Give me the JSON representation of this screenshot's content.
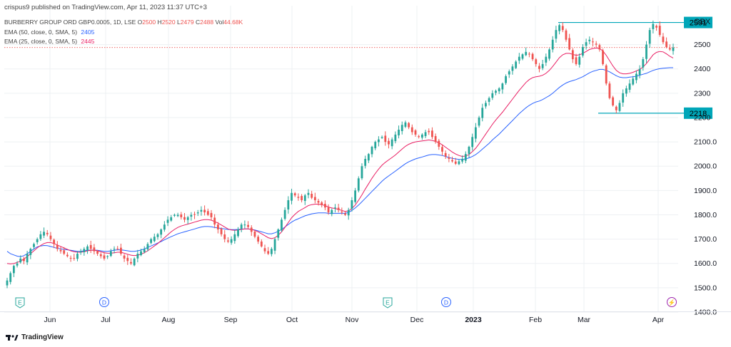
{
  "header": {
    "published": "crispus9 published on TradingView.com, Apr 11, 2023 11:37 UTC+3",
    "symbol": "BURBERRY GROUP ORD GBP0.0005, 1D, LSE",
    "ohlc": {
      "o_label": "O",
      "o": "2500",
      "h_label": "H",
      "h": "2520",
      "l_label": "L",
      "l": "2479",
      "c_label": "C",
      "c": "2488",
      "vol_label": "Vol",
      "vol": "44.68K"
    },
    "ema50_label": "EMA (50, close, 0, SMA, 5)",
    "ema50_value": "2405",
    "ema25_label": "EMA (25, close, 0, SMA, 5)",
    "ema25_value": "2445"
  },
  "footer": {
    "brand": "TradingView"
  },
  "colors": {
    "up": "#26a69a",
    "down": "#ef5350",
    "ema50": "#2962ff",
    "ema25": "#e91e63",
    "level": "#00a6b8",
    "grid": "#eef0f3",
    "price_line": "#ef5350"
  },
  "chart_data": {
    "type": "candlestick",
    "currency": "GBX",
    "ylim": [
      1400,
      2660
    ],
    "y_ticks": [
      "1400.0",
      "1500.0",
      "1600.0",
      "1700.0",
      "1800.0",
      "1900.0",
      "2000.0",
      "2100.0",
      "2200",
      "2300",
      "2400",
      "2500"
    ],
    "x_ticks": [
      "Jun",
      "Jul",
      "Aug",
      "Sep",
      "Oct",
      "Nov",
      "Dec",
      "2023",
      "Feb",
      "Mar",
      "Apr"
    ],
    "levels": [
      {
        "label": "2591",
        "value": 2591,
        "x_start": 2022.0
      },
      {
        "label": "2218",
        "value": 2218,
        "x_start": 2022.0
      }
    ],
    "current_price": 2488,
    "event_markers": [
      {
        "label": "E",
        "x_tick": "May",
        "kind": "earnings"
      },
      {
        "label": "D",
        "x_tick": "Jul",
        "kind": "dividend"
      },
      {
        "label": "E",
        "x_tick": "Nov",
        "kind": "earnings"
      },
      {
        "label": "D",
        "x_tick": "Dec",
        "kind": "dividend"
      },
      {
        "label": "⚡",
        "x_tick": "Apr",
        "kind": "split"
      }
    ],
    "close_path": [
      1530,
      1560,
      1590,
      1600,
      1620,
      1610,
      1640,
      1660,
      1680,
      1700,
      1720,
      1730,
      1720,
      1700,
      1680,
      1660,
      1650,
      1640,
      1630,
      1620,
      1620,
      1640,
      1650,
      1660,
      1670,
      1660,
      1650,
      1640,
      1630,
      1620,
      1630,
      1650,
      1660,
      1660,
      1640,
      1620,
      1610,
      1600,
      1620,
      1640,
      1650,
      1660,
      1680,
      1700,
      1710,
      1720,
      1740,
      1760,
      1780,
      1790,
      1800,
      1800,
      1790,
      1780,
      1790,
      1800,
      1800,
      1810,
      1820,
      1810,
      1800,
      1790,
      1760,
      1740,
      1720,
      1700,
      1690,
      1700,
      1720,
      1740,
      1760,
      1760,
      1750,
      1730,
      1710,
      1690,
      1670,
      1650,
      1640,
      1660,
      1700,
      1740,
      1780,
      1820,
      1860,
      1890,
      1880,
      1870,
      1860,
      1880,
      1890,
      1870,
      1860,
      1850,
      1840,
      1830,
      1810,
      1820,
      1830,
      1820,
      1810,
      1800,
      1820,
      1860,
      1900,
      1950,
      2000,
      2030,
      2050,
      2080,
      2100,
      2110,
      2120,
      2100,
      2090,
      2110,
      2130,
      2150,
      2170,
      2180,
      2160,
      2140,
      2130,
      2120,
      2130,
      2140,
      2140,
      2120,
      2100,
      2080,
      2060,
      2040,
      2030,
      2020,
      2010,
      2020,
      2030,
      2050,
      2080,
      2120,
      2160,
      2200,
      2240,
      2260,
      2280,
      2300,
      2310,
      2320,
      2340,
      2370,
      2390,
      2410,
      2430,
      2450,
      2460,
      2470,
      2460,
      2440,
      2420,
      2400,
      2420,
      2450,
      2480,
      2520,
      2560,
      2580,
      2560,
      2520,
      2480,
      2440,
      2420,
      2450,
      2490,
      2510,
      2520,
      2510,
      2500,
      2480,
      2420,
      2340,
      2280,
      2250,
      2230,
      2260,
      2300,
      2320,
      2340,
      2360,
      2380,
      2400,
      2440,
      2500,
      2560,
      2585,
      2570,
      2540,
      2510,
      2490,
      2480,
      2488
    ],
    "ema50_path": [
      1650,
      1640,
      1635,
      1630,
      1628,
      1632,
      1640,
      1650,
      1660,
      1668,
      1672,
      1674,
      1673,
      1670,
      1666,
      1662,
      1660,
      1658,
      1656,
      1654,
      1652,
      1650,
      1650,
      1652,
      1654,
      1655,
      1655,
      1654,
      1652,
      1650,
      1650,
      1652,
      1654,
      1656,
      1656,
      1654,
      1652,
      1650,
      1650,
      1652,
      1655,
      1660,
      1666,
      1672,
      1678,
      1684,
      1690,
      1697,
      1704,
      1710,
      1716,
      1722,
      1726,
      1730,
      1734,
      1738,
      1742,
      1746,
      1750,
      1752,
      1752,
      1751,
      1748,
      1746,
      1744,
      1742,
      1740,
      1739,
      1739,
      1740,
      1741,
      1742,
      1742,
      1740,
      1738,
      1734,
      1730,
      1726,
      1722,
      1722,
      1726,
      1732,
      1740,
      1750,
      1760,
      1770,
      1778,
      1784,
      1790,
      1796,
      1800,
      1804,
      1806,
      1808,
      1808,
      1808,
      1806,
      1806,
      1806,
      1806,
      1806,
      1806,
      1810,
      1818,
      1828,
      1840,
      1854,
      1868,
      1882,
      1896,
      1910,
      1924,
      1938,
      1950,
      1960,
      1970,
      1980,
      1990,
      2000,
      2010,
      2018,
      2024,
      2030,
      2034,
      2038,
      2042,
      2046,
      2048,
      2048,
      2046,
      2044,
      2040,
      2036,
      2032,
      2030,
      2028,
      2028,
      2030,
      2034,
      2040,
      2048,
      2058,
      2070,
      2082,
      2094,
      2108,
      2120,
      2132,
      2146,
      2160,
      2174,
      2188,
      2202,
      2216,
      2228,
      2240,
      2250,
      2258,
      2264,
      2268,
      2274,
      2282,
      2290,
      2300,
      2312,
      2324,
      2334,
      2342,
      2348,
      2352,
      2356,
      2362,
      2368,
      2376,
      2384,
      2390,
      2394,
      2398,
      2398,
      2394,
      2388,
      2380,
      2372,
      2366,
      2364,
      2364,
      2366,
      2368,
      2370,
      2374,
      2378,
      2382,
      2388,
      2394,
      2398,
      2401,
      2403,
      2404,
      2405,
      2405
    ],
    "ema25_path": [
      1600,
      1598,
      1600,
      1604,
      1610,
      1618,
      1628,
      1640,
      1652,
      1664,
      1674,
      1682,
      1686,
      1686,
      1682,
      1676,
      1670,
      1664,
      1658,
      1652,
      1648,
      1646,
      1646,
      1648,
      1652,
      1654,
      1654,
      1652,
      1648,
      1644,
      1642,
      1642,
      1644,
      1646,
      1646,
      1642,
      1638,
      1634,
      1632,
      1634,
      1638,
      1644,
      1652,
      1662,
      1672,
      1682,
      1694,
      1706,
      1718,
      1730,
      1740,
      1748,
      1754,
      1758,
      1762,
      1766,
      1770,
      1774,
      1778,
      1780,
      1780,
      1778,
      1772,
      1766,
      1758,
      1750,
      1742,
      1738,
      1736,
      1738,
      1740,
      1742,
      1742,
      1740,
      1736,
      1730,
      1722,
      1714,
      1706,
      1702,
      1706,
      1716,
      1730,
      1748,
      1768,
      1788,
      1802,
      1814,
      1822,
      1830,
      1838,
      1842,
      1844,
      1844,
      1842,
      1838,
      1832,
      1828,
      1826,
      1822,
      1818,
      1814,
      1816,
      1826,
      1840,
      1860,
      1882,
      1906,
      1928,
      1950,
      1970,
      1988,
      2004,
      2016,
      2026,
      2036,
      2046,
      2058,
      2070,
      2082,
      2090,
      2096,
      2100,
      2102,
      2104,
      2106,
      2108,
      2106,
      2102,
      2096,
      2088,
      2078,
      2068,
      2058,
      2050,
      2044,
      2040,
      2042,
      2048,
      2060,
      2074,
      2092,
      2112,
      2132,
      2152,
      2172,
      2190,
      2206,
      2222,
      2240,
      2258,
      2276,
      2294,
      2312,
      2328,
      2344,
      2356,
      2364,
      2368,
      2370,
      2374,
      2382,
      2394,
      2410,
      2428,
      2446,
      2458,
      2464,
      2464,
      2460,
      2456,
      2458,
      2464,
      2472,
      2480,
      2484,
      2486,
      2484,
      2474,
      2456,
      2434,
      2412,
      2394,
      2384,
      2380,
      2380,
      2382,
      2386,
      2392,
      2398,
      2408,
      2422,
      2440,
      2458,
      2468,
      2472,
      2470,
      2462,
      2452,
      2445
    ]
  }
}
